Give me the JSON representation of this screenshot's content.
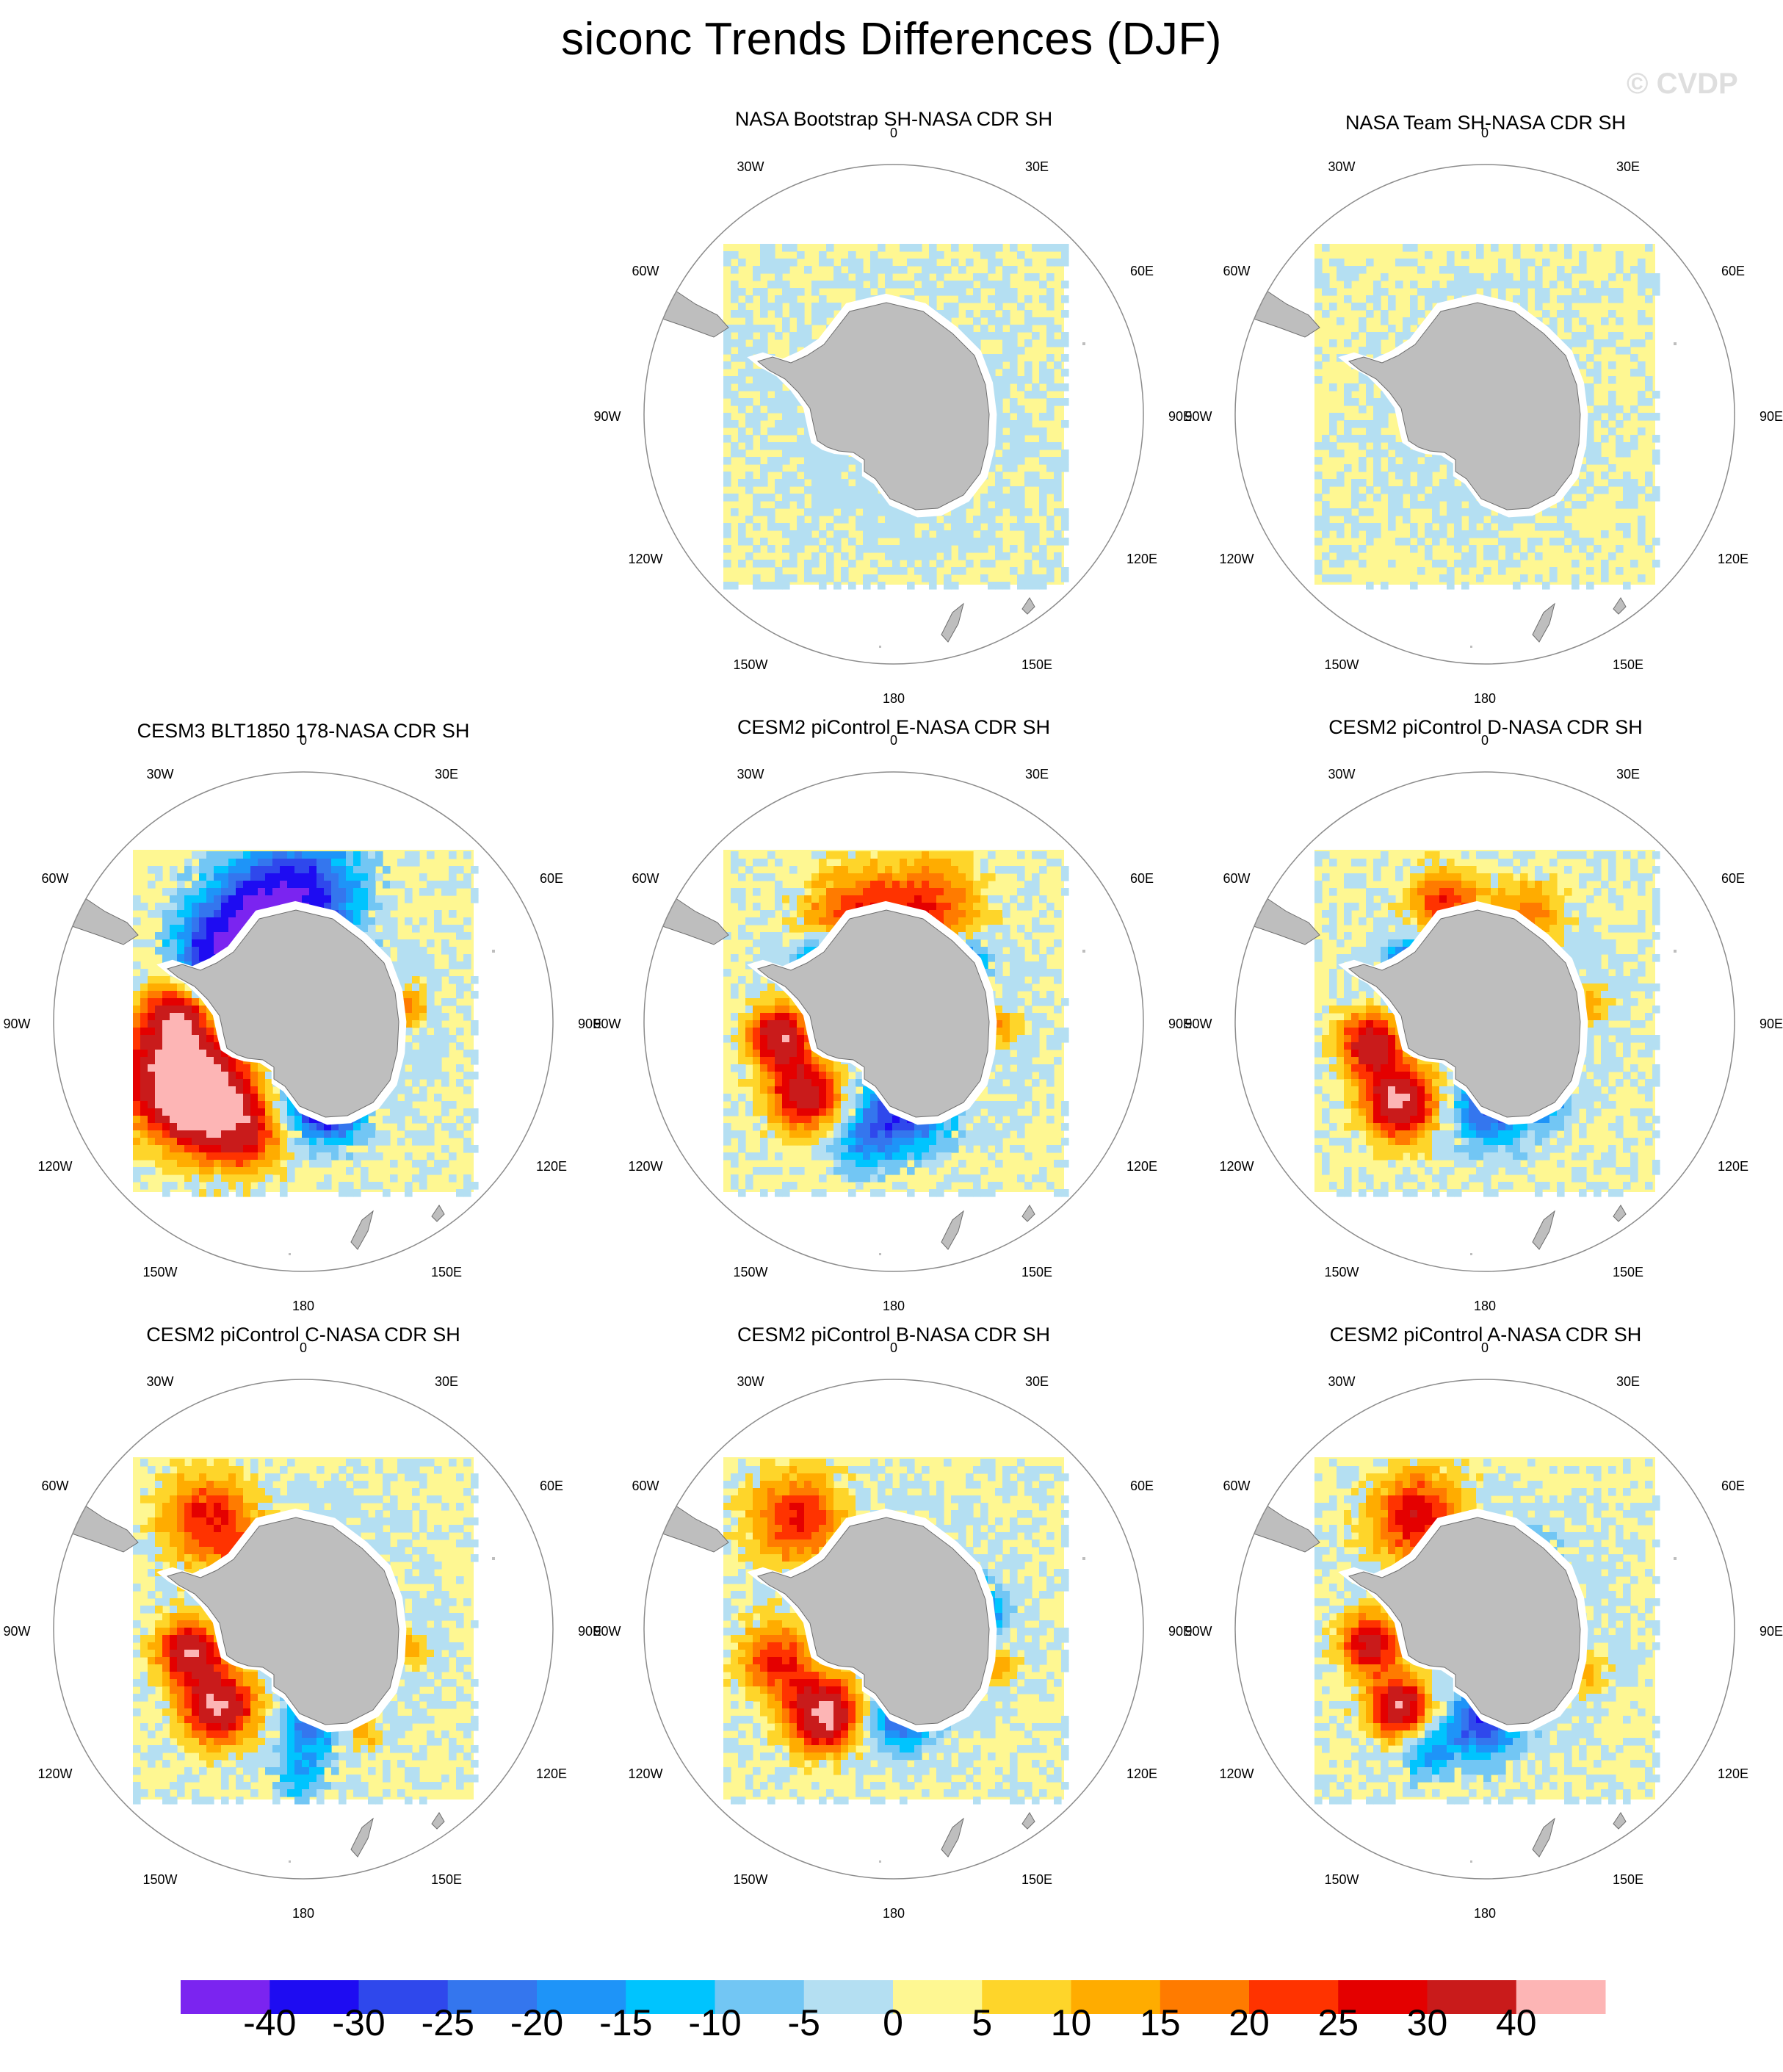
{
  "title": "siconc Trends Differences (DJF)",
  "watermark": "© CVDP",
  "panels": [
    {
      "title": "NASA Bootstrap SH-NASA CDR SH",
      "pattern": "bootstrap"
    },
    {
      "title": "NASA Team SH-NASA CDR SH",
      "pattern": "team"
    },
    {
      "title": "CESM3 BLT1850 178-NASA CDR SH",
      "pattern": "cesm3"
    },
    {
      "title": "CESM2 piControl E-NASA CDR SH",
      "pattern": "model_e"
    },
    {
      "title": "CESM2 piControl D-NASA CDR SH",
      "pattern": "model_d"
    },
    {
      "title": "CESM2 piControl C-NASA CDR SH",
      "pattern": "model_c"
    },
    {
      "title": "CESM2 piControl B-NASA CDR SH",
      "pattern": "model_b"
    },
    {
      "title": "CESM2 piControl A-NASA CDR SH",
      "pattern": "model_a"
    }
  ],
  "longitude_labels": [
    "0",
    "30E",
    "60E",
    "90E",
    "120E",
    "150E",
    "180",
    "150W",
    "120W",
    "90W",
    "60W",
    "30W"
  ],
  "colorbar": {
    "colors": [
      "#7b24f0",
      "#1e0cf2",
      "#2f48ec",
      "#3476ee",
      "#1e94f8",
      "#00c4fe",
      "#72c6f4",
      "#b4dff2",
      "#fef792",
      "#fed52a",
      "#ffac00",
      "#ff7b00",
      "#ff3300",
      "#e40000",
      "#c91b1b",
      "#fdb5b5"
    ],
    "labels": [
      "-40",
      "-30",
      "-25",
      "-20",
      "-15",
      "-10",
      "-5",
      "0",
      "5",
      "10",
      "15",
      "20",
      "25",
      "30",
      "40"
    ]
  },
  "colors": {
    "land": "#bebebe",
    "land_stroke": "#6e6e6e",
    "circle": "#8c8c8c"
  }
}
